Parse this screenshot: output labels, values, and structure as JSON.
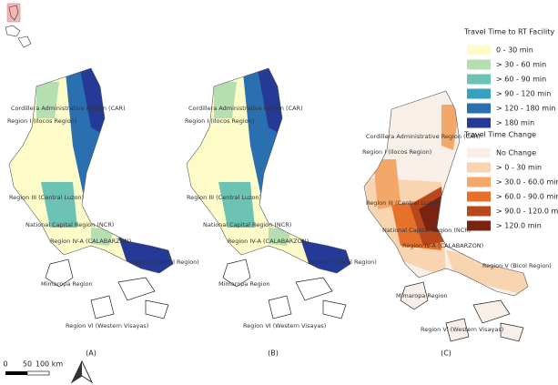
{
  "legends": [
    {
      "title": "Travel Time to RT Facility",
      "items": [
        {
          "label": "0 - 30 min",
          "color": "#fdfcc8"
        },
        {
          "label": "> 30 - 60 min",
          "color": "#b5dfb1"
        },
        {
          "label": "> 60 - 90 min",
          "color": "#6cc3b4"
        },
        {
          "label": "> 90 - 120 min",
          "color": "#38a0c0"
        },
        {
          "label": "> 120 - 180 min",
          "color": "#2a6fb0"
        },
        {
          "label": "> 180 min",
          "color": "#243a96"
        }
      ]
    },
    {
      "title": "Travel Time Change",
      "items": [
        {
          "label": "No Change",
          "color": "#f7efe8"
        },
        {
          "label": "> 0 - 30 min",
          "color": "#f8d5b0"
        },
        {
          "label": "> 30.0 - 60.0 min",
          "color": "#f3a86a"
        },
        {
          "label": "> 60.0 - 90.0 min",
          "color": "#e5712b"
        },
        {
          "label": "> 90.0 - 120.0 min",
          "color": "#b8471b"
        },
        {
          "label": "> 120.0 min",
          "color": "#7a2311"
        }
      ]
    }
  ],
  "panels": [
    {
      "label": "(A)",
      "regions": [
        "Cordillera Administrative Region (CAR)",
        "Region I (Ilocos Region)",
        "Region III (Central Luzon)",
        "National Capital Region (NCR)",
        "Region IV-A (CALABARZON)",
        "Region V (Bicol Region)",
        "Mimaropa Region",
        "Region VI (Western Visayas)"
      ]
    },
    {
      "label": "(B)",
      "regions": [
        "Cordillera Administrative Region (CAR)",
        "Region I (Ilocos Region)",
        "Region III (Central Luzon)",
        "National Capital Region (NCR)",
        "Region IV-A (CALABARZON)",
        "Region V (Bicol Region)",
        "Mimaropa Region",
        "Region VI (Western Visayas)"
      ]
    },
    {
      "label": "(C)",
      "regions": [
        "Cordillera Administrative Region (CAR)",
        "Region I (Ilocos Region)",
        "Region III (Central Luzon)",
        "National Capital Region (NCR)",
        "Region IV-A (CALABARZON)",
        "Region V (Bicol Region)",
        "Mimaropa Region",
        "Region VI (Western Visayas)"
      ]
    }
  ],
  "scale_bar": {
    "labels": [
      "0",
      "50",
      "100 km"
    ]
  }
}
